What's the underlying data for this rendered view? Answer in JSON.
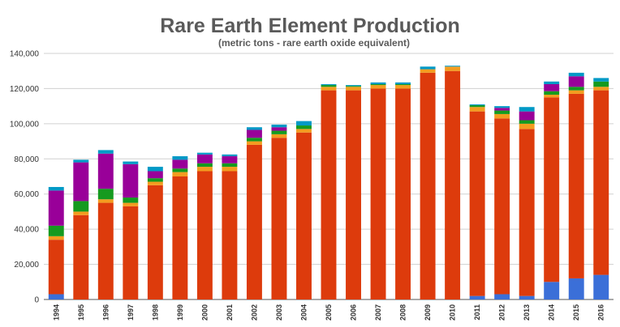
{
  "chart_data": {
    "type": "bar",
    "stacked": true,
    "title": "Rare Earth Element Production",
    "subtitle": "(metric tons - rare earth oxide equivalent)",
    "xlabel": "",
    "ylabel": "",
    "ylim": [
      0,
      140000
    ],
    "yticks": [
      "0",
      "20,000",
      "40,000",
      "60,000",
      "80,000",
      "100,000",
      "120,000",
      "140,000"
    ],
    "grid": true,
    "categories": [
      "1994",
      "1995",
      "1996",
      "1997",
      "1998",
      "1999",
      "2000",
      "2001",
      "2002",
      "2003",
      "2004",
      "2005",
      "2006",
      "2007",
      "2008",
      "2009",
      "2010",
      "2011",
      "2012",
      "2013",
      "2014",
      "2015",
      "2016"
    ],
    "series": [
      {
        "color": "#3b6fd8",
        "values": [
          3000,
          0,
          0,
          0,
          0,
          0,
          0,
          0,
          0,
          0,
          0,
          0,
          0,
          0,
          0,
          0,
          0,
          2000,
          3000,
          2000,
          10000,
          12000,
          14000
        ]
      },
      {
        "color": "#dd3b0c",
        "values": [
          31000,
          48000,
          55000,
          53000,
          65000,
          70000,
          73000,
          73000,
          88000,
          92000,
          95000,
          119000,
          119000,
          120000,
          120000,
          129000,
          130000,
          105000,
          100000,
          95000,
          105000,
          105000,
          105000
        ]
      },
      {
        "color": "#f39c1f",
        "values": [
          2000,
          2000,
          2000,
          2000,
          2000,
          2500,
          2500,
          2500,
          2000,
          2000,
          2000,
          2000,
          2000,
          2000,
          2000,
          2000,
          2500,
          2500,
          2500,
          3000,
          1500,
          2000,
          2000
        ]
      },
      {
        "color": "#159a1f",
        "values": [
          6000,
          6000,
          6000,
          3000,
          2000,
          2000,
          2000,
          2000,
          2000,
          2000,
          2000,
          1000,
          500,
          500,
          500,
          0,
          0,
          1000,
          2000,
          2000,
          2000,
          2000,
          3000
        ]
      },
      {
        "color": "#990099",
        "values": [
          20000,
          22000,
          20000,
          19000,
          4000,
          5000,
          5000,
          4000,
          4500,
          2000,
          0,
          0,
          0,
          0,
          0,
          0,
          0,
          0,
          1500,
          5000,
          4000,
          6000,
          0
        ]
      },
      {
        "color": "#0099c6",
        "values": [
          2000,
          1500,
          2000,
          1500,
          2500,
          2000,
          1000,
          1000,
          1500,
          1500,
          2500,
          500,
          500,
          1000,
          1000,
          1500,
          500,
          500,
          1000,
          2500,
          1500,
          2000,
          2000
        ]
      }
    ]
  }
}
